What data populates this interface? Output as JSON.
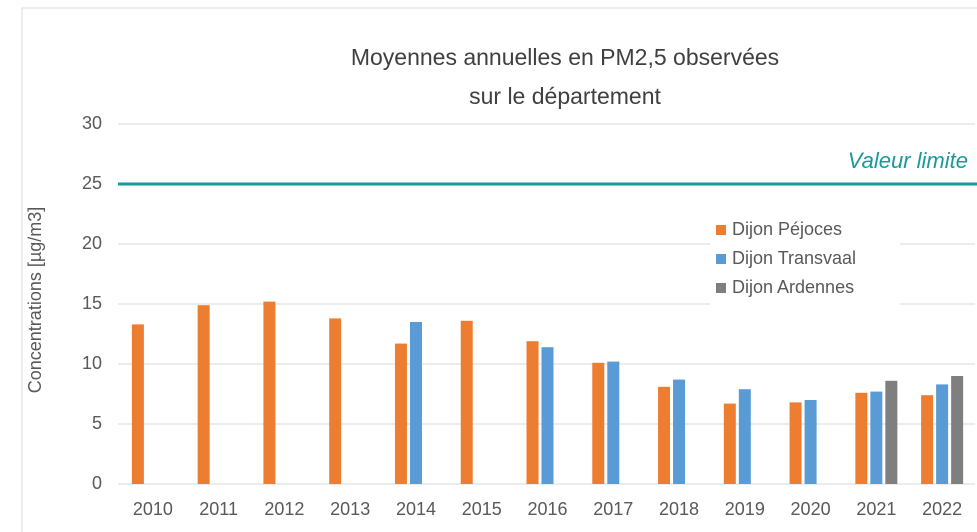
{
  "chart_data": {
    "type": "bar",
    "title": "Moyennes annuelles en PM2,5 observées sur le département",
    "y_label": "Concentrations [µg/m3]",
    "categories": [
      "2010",
      "2011",
      "2012",
      "2013",
      "2014",
      "2015",
      "2016",
      "2017",
      "2018",
      "2019",
      "2020",
      "2021",
      "2022"
    ],
    "series": [
      {
        "name": "Dijon Péjoces",
        "color": "#ed7d31",
        "values": [
          13.3,
          14.9,
          15.2,
          13.8,
          11.7,
          13.6,
          11.9,
          10.1,
          8.1,
          6.7,
          6.8,
          7.6,
          7.4
        ]
      },
      {
        "name": "Dijon Transvaal",
        "color": "#5b9bd5",
        "values": [
          null,
          null,
          null,
          null,
          13.5,
          null,
          11.4,
          10.2,
          8.7,
          7.9,
          7.0,
          7.7,
          8.3
        ]
      },
      {
        "name": "Dijon Ardennes",
        "color": "#7f7f7f",
        "values": [
          null,
          null,
          null,
          null,
          null,
          null,
          null,
          null,
          null,
          null,
          null,
          8.6,
          9.0
        ]
      }
    ],
    "reference_line": {
      "value": 25,
      "label": "Valeur limite",
      "color": "#1a9a9a"
    },
    "ylim": [
      0,
      30
    ],
    "yticks": [
      0,
      5,
      10,
      15,
      20,
      25,
      30
    ],
    "grid": true,
    "legend": "upper right"
  }
}
